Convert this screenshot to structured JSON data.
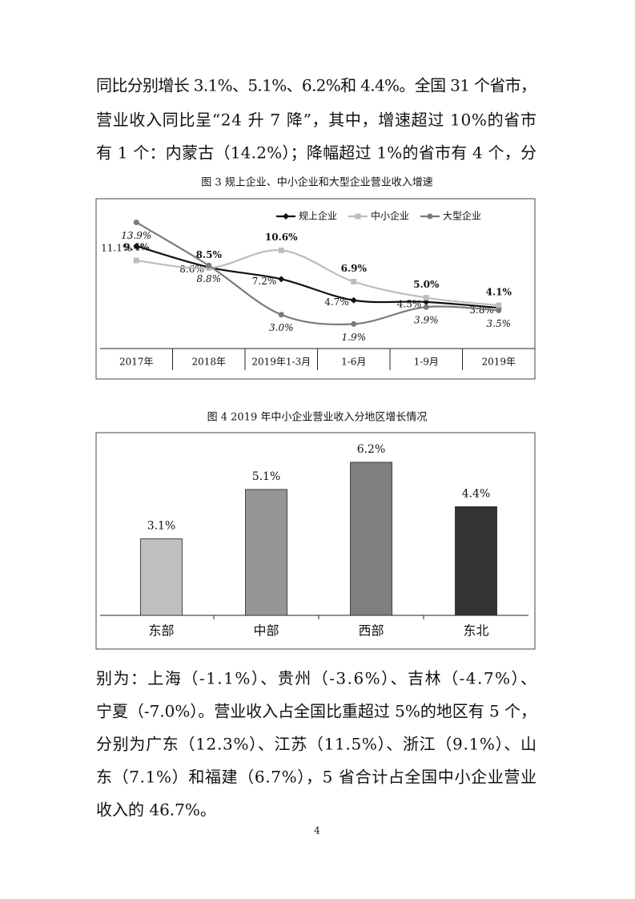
{
  "text_top": {
    "lines": [
      "同比分别增长 3.1%、5.1%、6.2%和 4.4%。全国 31 个省市，",
      "营业收入同比呈“24 升 7 降”，其中，增速超过 10%的省市",
      "有 1 个：内蒙古（14.2%）；降幅超过 1%的省市有 4 个，分"
    ]
  },
  "chart_data": [
    {
      "type": "line",
      "title": "图 3  规上企业、中小企业和大型企业营业收入增速",
      "categories": [
        "2017年",
        "2018年",
        "2019年1-3月",
        "1-6月",
        "1-9月",
        "2019年"
      ],
      "ylim": [
        -1,
        16.5
      ],
      "legend": "top",
      "series": [
        {
          "name": "规上企业",
          "color": "#111111",
          "marker": "diamond",
          "label_style": "normal",
          "values": [
            11.1,
            8.6,
            7.2,
            4.7,
            4.5,
            3.8
          ],
          "value_labels": [
            "11.1%",
            "8.6%",
            "7.2%",
            "4.7%",
            "4.5%",
            "3.8%"
          ]
        },
        {
          "name": "中小企业",
          "color": "#bdbdbd",
          "marker": "square",
          "label_style": "bold",
          "values": [
            9.4,
            8.5,
            10.6,
            6.9,
            5.0,
            4.1
          ],
          "value_labels": [
            "9.4%",
            "8.5%",
            "10.6%",
            "6.9%",
            "5.0%",
            "4.1%"
          ]
        },
        {
          "name": "大型企业",
          "color": "#7a7a7a",
          "marker": "circle",
          "label_style": "italic",
          "values": [
            13.9,
            8.8,
            3.0,
            1.9,
            3.9,
            3.5
          ],
          "value_labels": [
            "13.9%",
            "8.8%",
            "3.0%",
            "1.9%",
            "3.9%",
            "3.5%"
          ]
        }
      ]
    },
    {
      "type": "bar",
      "title": "图 4  2019 年中小企业营业收入分地区增长情况",
      "categories": [
        "东部",
        "中部",
        "西部",
        "东北"
      ],
      "values": [
        3.1,
        5.1,
        6.2,
        4.4
      ],
      "value_labels": [
        "3.1%",
        "5.1%",
        "6.2%",
        "4.4%"
      ],
      "colors": [
        "#bfbfbf",
        "#969696",
        "#7f7f7f",
        "#333333"
      ],
      "ylim": [
        0,
        7.4
      ]
    }
  ],
  "text_bottom": {
    "lines": [
      "别为：上海（-1.1%）、贵州（-3.6%）、吉林（-4.7%）、",
      "宁夏（-7.0%）。营业收入占全国比重超过 5%的地区有 5 个，",
      "分别为广东（12.3%）、江苏（11.5%）、浙江（9.1%）、山",
      "东（7.1%）和福建（6.7%），5 省合计占全国中小企业营业",
      "收入的 46.7%。"
    ]
  },
  "page_number": "4"
}
